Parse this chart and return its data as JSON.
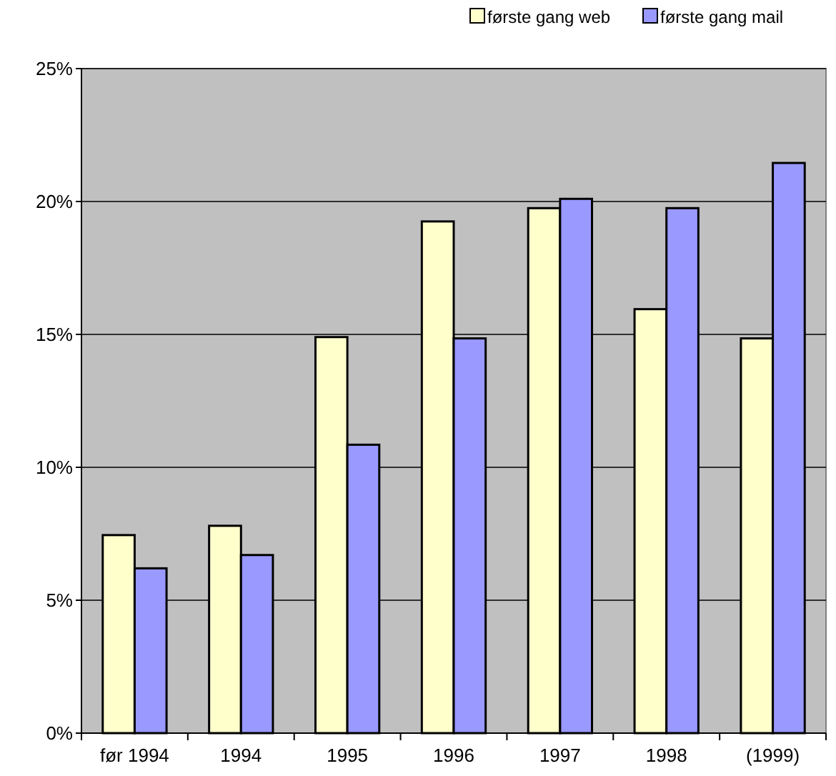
{
  "chart_data": {
    "type": "bar",
    "categories": [
      "før 1994",
      "1994",
      "1995",
      "1996",
      "1997",
      "1998",
      "(1999)"
    ],
    "series": [
      {
        "name": "første gang web",
        "color": "#ffffcc",
        "values": [
          7.45,
          7.8,
          14.9,
          19.25,
          19.75,
          15.95,
          14.85
        ]
      },
      {
        "name": "første gang mail",
        "color": "#9999ff",
        "values": [
          6.2,
          6.7,
          10.85,
          14.85,
          20.1,
          19.75,
          21.45
        ]
      }
    ],
    "ylim": [
      0,
      25
    ],
    "yticks": [
      {
        "value": 0,
        "label": "0%"
      },
      {
        "value": 5,
        "label": "5%"
      },
      {
        "value": 10,
        "label": "10%"
      },
      {
        "value": 15,
        "label": "15%"
      },
      {
        "value": 20,
        "label": "20%"
      },
      {
        "value": 25,
        "label": "25%"
      }
    ],
    "grid": "y",
    "legend": "top right"
  }
}
